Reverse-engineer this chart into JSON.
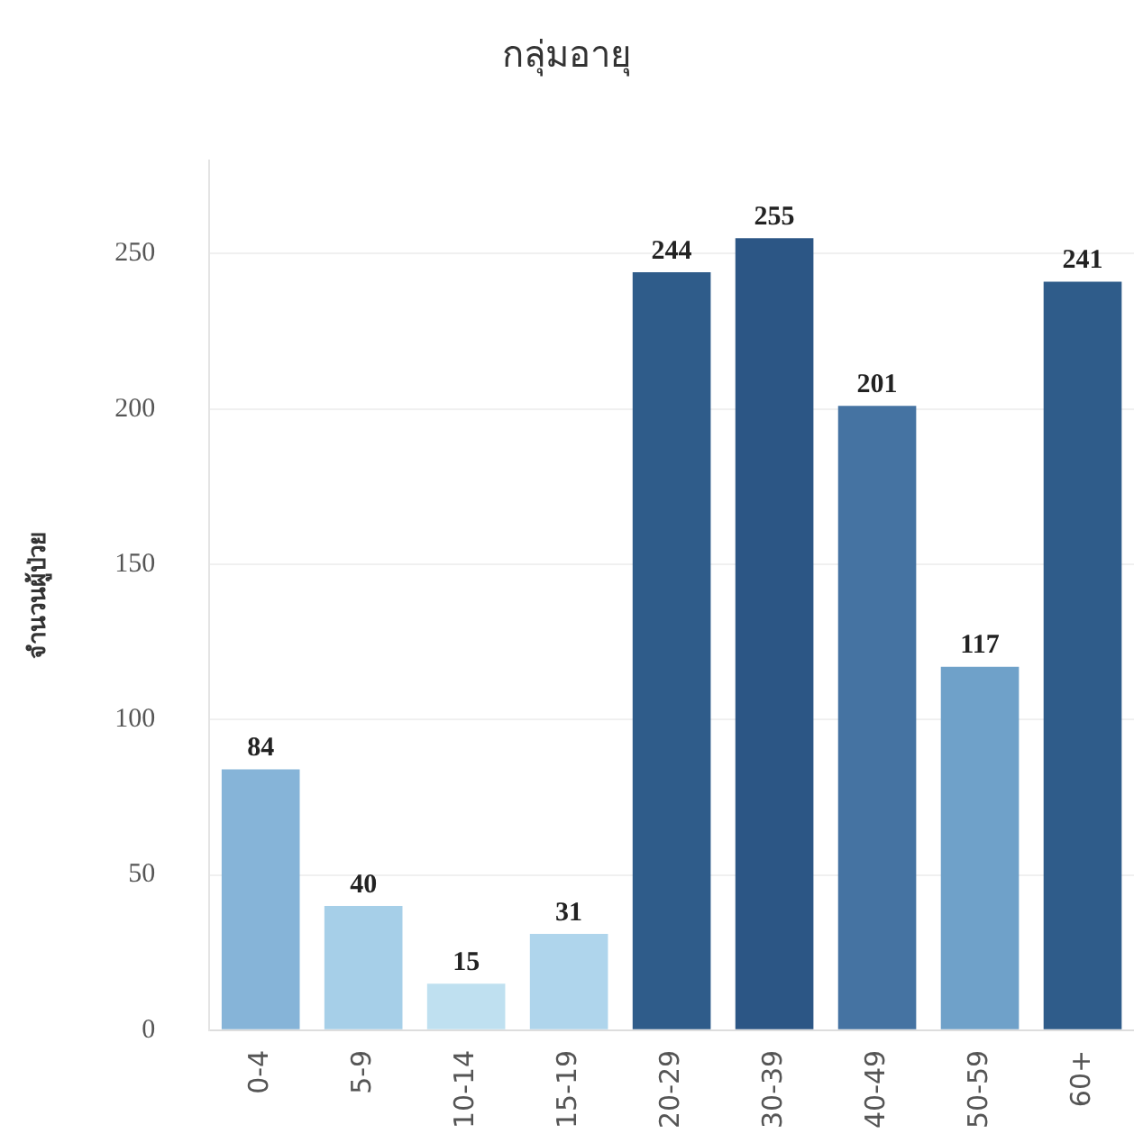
{
  "chart_data": {
    "type": "bar",
    "title": "กลุ่มอายุ",
    "ylabel": "จำนวนผู้ป่วย",
    "categories": [
      "0-4",
      "5-9",
      "10-14",
      "15-19",
      "20-29",
      "30-39",
      "40-49",
      "50-59",
      "60+"
    ],
    "values": [
      84,
      40,
      15,
      31,
      244,
      255,
      201,
      117,
      241
    ],
    "colors": [
      "#86b4d8",
      "#a6cfe8",
      "#bfe0f0",
      "#afd5ec",
      "#2f5c8a",
      "#2c5685",
      "#4573a2",
      "#6fa1c9",
      "#2f5c8a"
    ],
    "ylim": [
      0,
      280
    ],
    "yticks": [
      0,
      50,
      100,
      150,
      200,
      250
    ],
    "grid": "y",
    "data_labels": true,
    "legend": false
  }
}
